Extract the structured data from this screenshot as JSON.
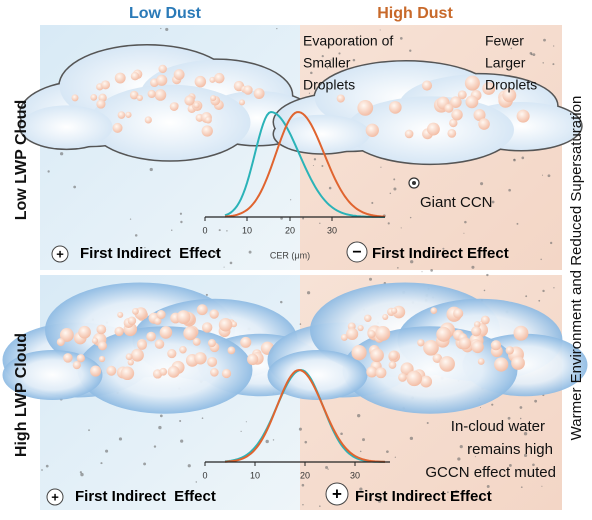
{
  "columns": [
    "Low Dust",
    "High Dust"
  ],
  "rows": [
    "Low LWP Cloud",
    "High LWP Cloud"
  ],
  "side_label": "Warmer Environment and Reduced Supersaturation",
  "panels": [
    {
      "sign": "+",
      "effect": "First Indirect  Effect"
    },
    {
      "sign": "−",
      "effect": "First Indirect Effect",
      "annotations": [
        "Evaporation of",
        "Smaller",
        "Droplets"
      ],
      "annotations_2": [
        "Fewer",
        "Larger",
        "Droplets"
      ],
      "ccn_label": "Giant CCN"
    },
    {
      "sign": "+",
      "effect": "First Indirect  Effect"
    },
    {
      "sign": "+",
      "effect": "First Indirect Effect",
      "annotations": [
        "In-cloud water",
        "remains high",
        "GCCN effect muted"
      ]
    }
  ],
  "top_axis": {
    "label": "CER (μm)",
    "ticks": [
      "0",
      "10",
      "20",
      "30"
    ]
  },
  "bottom_axis": {
    "ticks": [
      "0",
      "10",
      "20",
      "30"
    ]
  }
}
